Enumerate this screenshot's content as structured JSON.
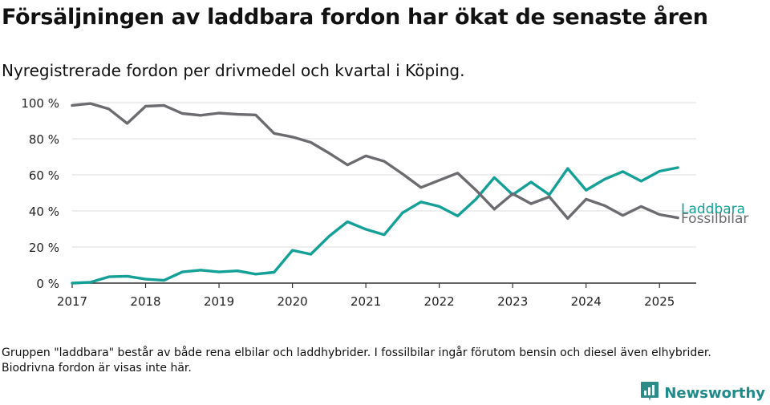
{
  "title": "Försäljningen av laddbara fordon har ökat de senaste åren",
  "subtitle": "Nyregistrerade fordon per drivmedel och kvartal i Köping.",
  "footnote": "Gruppen \"laddbara\" består av både rena elbilar och laddhybrider. I fossilbilar ingår förutom bensin och diesel även elhybrider. Biodrivna fordon är visas inte här.",
  "brand": {
    "name": "Newsworthy",
    "icon": "bar-chart-logo-icon"
  },
  "colors": {
    "laddbara": "#14a096",
    "fossil": "#6b6b70",
    "grid": "#dedede",
    "axis": "#333333",
    "brand": "#1f8a8a"
  },
  "chart_data": {
    "type": "line",
    "title": "",
    "xlabel": "",
    "ylabel": "",
    "ylim": [
      0,
      100
    ],
    "yticks": [
      0,
      20,
      40,
      60,
      80,
      100
    ],
    "ytick_labels": [
      "0 %",
      "20 %",
      "40 %",
      "60 %",
      "80 %",
      "100 %"
    ],
    "xlim": [
      2017,
      2025.5
    ],
    "xticks": [
      2017,
      2018,
      2019,
      2020,
      2021,
      2022,
      2023,
      2024,
      2025
    ],
    "xtick_labels": [
      "2017",
      "2018",
      "2019",
      "2020",
      "2021",
      "2022",
      "2023",
      "2024",
      "2025"
    ],
    "grid": "horizontal",
    "legend": "end-of-line labels",
    "x": [
      "2017-Q1",
      "2017-Q2",
      "2017-Q3",
      "2017-Q4",
      "2018-Q1",
      "2018-Q2",
      "2018-Q3",
      "2018-Q4",
      "2019-Q1",
      "2019-Q2",
      "2019-Q3",
      "2019-Q4",
      "2020-Q1",
      "2020-Q2",
      "2020-Q3",
      "2020-Q4",
      "2021-Q1",
      "2021-Q2",
      "2021-Q3",
      "2021-Q4",
      "2022-Q1",
      "2022-Q2",
      "2022-Q3",
      "2022-Q4",
      "2023-Q1",
      "2023-Q2",
      "2023-Q3",
      "2023-Q4",
      "2024-Q1",
      "2024-Q2",
      "2024-Q3",
      "2024-Q4",
      "2025-Q1",
      "2025-Q2"
    ],
    "series": [
      {
        "name": "Laddbara",
        "color_key": "laddbara",
        "values": [
          0,
          0.5,
          3.5,
          3.8,
          2.2,
          1.5,
          6.2,
          7.2,
          6.2,
          6.8,
          5.0,
          6.0,
          18.2,
          16.0,
          26.0,
          34.0,
          29.8,
          26.8,
          39.0,
          45.0,
          42.5,
          37.2,
          46.5,
          58.5,
          49.0,
          56.0,
          49.0,
          63.5,
          51.5,
          57.5,
          61.8,
          56.5,
          62.0,
          64.0
        ]
      },
      {
        "name": "Fossilbilar",
        "color_key": "fossil",
        "values": [
          98.5,
          99.5,
          96.5,
          88.5,
          98.0,
          98.5,
          94.0,
          93.0,
          94.2,
          93.5,
          93.2,
          83.0,
          81.0,
          78.0,
          72.0,
          65.5,
          70.5,
          67.5,
          60.5,
          53.0,
          57.0,
          61.0,
          51.5,
          41.0,
          49.5,
          44.0,
          47.8,
          35.8,
          46.5,
          43.0,
          37.5,
          42.5,
          38.0,
          36.2
        ]
      }
    ]
  }
}
